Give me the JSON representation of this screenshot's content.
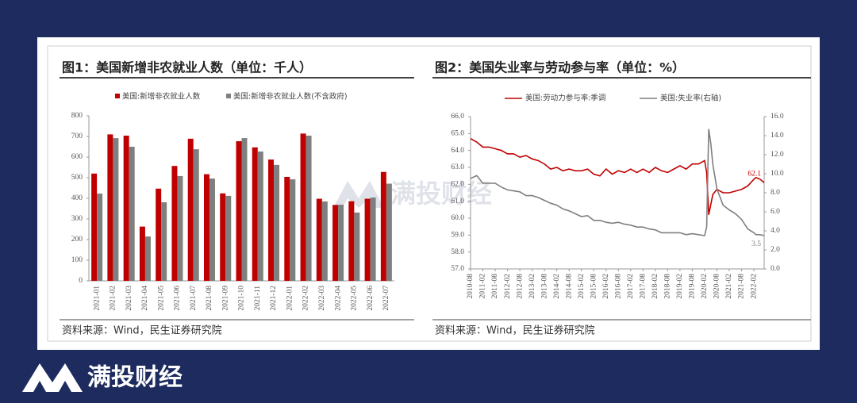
{
  "brand": "满投财经",
  "watermark": "满投财经",
  "chart_data": [
    {
      "type": "bar",
      "title": "图1：美国新增非农就业人数（单位：千人）",
      "source": "资料来源：Wind，民生证券研究院",
      "categories": [
        "2021-01",
        "2021-02",
        "2021-03",
        "2021-04",
        "2021-05",
        "2021-06",
        "2021-07",
        "2021-08",
        "2021-09",
        "2021-10",
        "2021-11",
        "2021-12",
        "2022-01",
        "2022-02",
        "2022-03",
        "2022-04",
        "2022-05",
        "2022-06",
        "2022-07"
      ],
      "series": [
        {
          "name": "美国:新增非农就业人数",
          "color": "#c00000",
          "values": [
            520,
            710,
            704,
            263,
            447,
            557,
            689,
            517,
            424,
            677,
            647,
            588,
            504,
            714,
            398,
            368,
            386,
            398,
            528
          ]
        },
        {
          "name": "美国:新增非农就业人数(不含政府)",
          "color": "#7f7f7f",
          "values": [
            423,
            692,
            650,
            215,
            381,
            508,
            638,
            496,
            412,
            692,
            627,
            562,
            492,
            704,
            385,
            369,
            331,
            404,
            471
          ]
        }
      ],
      "ylim": [
        0,
        800
      ],
      "yticks": [
        0,
        100,
        200,
        300,
        400,
        500,
        600,
        700,
        800
      ]
    },
    {
      "type": "line",
      "title": "图2：美国失业率与劳动参与率（单位：%）",
      "source": "资料来源：Wind，民生证券研究院",
      "x": [
        "2010-08",
        "2010-11",
        "2011-02",
        "2011-05",
        "2011-08",
        "2011-11",
        "2012-02",
        "2012-05",
        "2012-08",
        "2012-11",
        "2013-02",
        "2013-05",
        "2013-08",
        "2013-11",
        "2014-02",
        "2014-05",
        "2014-08",
        "2014-11",
        "2015-02",
        "2015-05",
        "2015-08",
        "2015-11",
        "2016-02",
        "2016-05",
        "2016-08",
        "2016-11",
        "2017-02",
        "2017-05",
        "2017-08",
        "2017-11",
        "2018-02",
        "2018-05",
        "2018-08",
        "2018-11",
        "2019-02",
        "2019-05",
        "2019-08",
        "2019-11",
        "2020-02",
        "2020-03",
        "2020-04",
        "2020-05",
        "2020-06",
        "2020-08",
        "2020-11",
        "2021-02",
        "2021-05",
        "2021-08",
        "2021-11",
        "2022-02",
        "2022-03",
        "2022-05",
        "2022-07"
      ],
      "series": [
        {
          "name": "美国:劳动力参与率:季调",
          "color": "#c00000",
          "end_label": "62.1",
          "values": [
            64.7,
            64.5,
            64.2,
            64.2,
            64.1,
            64.0,
            63.8,
            63.8,
            63.6,
            63.7,
            63.5,
            63.4,
            63.2,
            62.9,
            63.0,
            62.8,
            62.9,
            62.8,
            62.8,
            62.9,
            62.6,
            62.5,
            62.9,
            62.6,
            62.8,
            62.7,
            62.9,
            62.7,
            62.9,
            62.7,
            63.0,
            62.8,
            62.7,
            62.9,
            63.1,
            62.9,
            63.2,
            63.2,
            63.4,
            62.7,
            60.2,
            60.8,
            61.4,
            61.7,
            61.5,
            61.5,
            61.6,
            61.7,
            61.9,
            62.3,
            62.4,
            62.3,
            62.1
          ]
        },
        {
          "name": "美国:失业率(右轴)",
          "color": "#7f7f7f",
          "axis": "y2",
          "end_label": "3.5",
          "values": [
            9.5,
            9.8,
            9.0,
            9.0,
            9.0,
            8.6,
            8.3,
            8.2,
            8.1,
            7.7,
            7.7,
            7.5,
            7.2,
            6.9,
            6.7,
            6.3,
            6.1,
            5.8,
            5.5,
            5.6,
            5.1,
            5.1,
            4.9,
            4.8,
            4.9,
            4.7,
            4.6,
            4.4,
            4.4,
            4.2,
            4.1,
            3.8,
            3.8,
            3.8,
            3.8,
            3.6,
            3.7,
            3.6,
            3.5,
            4.4,
            14.7,
            13.2,
            11.0,
            8.4,
            6.7,
            6.2,
            5.8,
            5.2,
            4.2,
            3.8,
            3.6,
            3.6,
            3.5
          ]
        }
      ],
      "xlim": [
        "2010-08",
        "2022-07"
      ],
      "xticks": [
        "2010-08",
        "2011-02",
        "2011-08",
        "2012-02",
        "2012-08",
        "2013-02",
        "2013-08",
        "2014-02",
        "2014-08",
        "2015-02",
        "2015-08",
        "2016-02",
        "2016-08",
        "2017-02",
        "2017-08",
        "2018-02",
        "2018-08",
        "2019-02",
        "2019-08",
        "2020-02",
        "2020-08",
        "2021-02",
        "2021-08",
        "2022-02"
      ],
      "ylim": [
        57,
        66
      ],
      "yticks": [
        {
          "value": 57,
          "label": "57.0"
        },
        {
          "value": 58,
          "label": "58.0"
        },
        {
          "value": 59,
          "label": "59.0"
        },
        {
          "value": 60,
          "label": "60.0"
        },
        {
          "value": 61,
          "label": "61.0"
        },
        {
          "value": 62,
          "label": "62.0"
        },
        {
          "value": 63,
          "label": "63.0"
        },
        {
          "value": 64,
          "label": "64.0"
        },
        {
          "value": 65,
          "label": "65.0"
        },
        {
          "value": 66,
          "label": "66.0"
        }
      ],
      "y2lim": [
        0,
        16
      ],
      "y2ticks": [
        {
          "value": 0,
          "label": "0.0"
        },
        {
          "value": 2,
          "label": "2.0"
        },
        {
          "value": 4,
          "label": "4.0"
        },
        {
          "value": 6,
          "label": "6.0"
        },
        {
          "value": 8,
          "label": "8.0"
        },
        {
          "value": 10,
          "label": "10.0"
        },
        {
          "value": 12,
          "label": "12.0"
        },
        {
          "value": 14,
          "label": "14.0"
        },
        {
          "value": 16,
          "label": "16.0"
        }
      ]
    }
  ]
}
